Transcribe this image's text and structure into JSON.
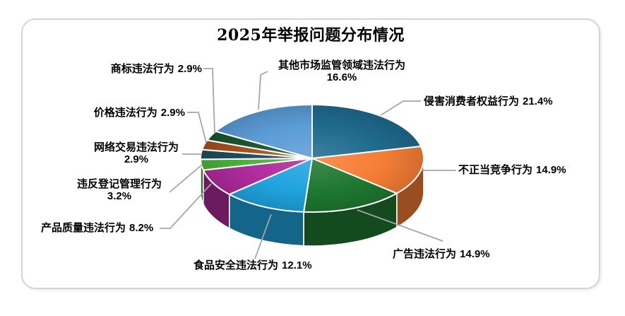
{
  "window": {
    "background_color": "#FFFFFF",
    "frame_border_color": "#D4D4D4"
  },
  "chart": {
    "title": "2025年举报问题分布情况"
  },
  "chart_data": {
    "type": "pie",
    "title": "2025年举报问题分布情况",
    "effect": "3d",
    "unit": "%",
    "start_angle_deg": 0,
    "direction": "clockwise",
    "legend_position": "none",
    "labels_style": "callout-with-leader-lines",
    "leader_line_color": "#A6A6A6",
    "slices": [
      {
        "label": "侵害消费者权益行为",
        "value": 21.4,
        "color": "#1F6A8D"
      },
      {
        "label": "不正当竞争行为",
        "value": 14.9,
        "color": "#F57E35"
      },
      {
        "label": "广告违法行为",
        "value": 14.9,
        "color": "#1E7830"
      },
      {
        "label": "食品安全违法行为",
        "value": 12.1,
        "color": "#1FA3DE"
      },
      {
        "label": "产品质量违法行为",
        "value": 8.2,
        "color": "#AF2B9D"
      },
      {
        "label": "违反登记管理行为",
        "value": 3.2,
        "color": "#4CB23B"
      },
      {
        "label": "网络交易违法行为",
        "value": 2.9,
        "color": "#1F4D5E"
      },
      {
        "label": "价格违法行为",
        "value": 2.9,
        "color": "#A6511E"
      },
      {
        "label": "商标违法行为",
        "value": 2.9,
        "color": "#1C5530"
      },
      {
        "label": "其他市场监管领域违法行为",
        "value": 16.6,
        "color": "#5B9BD5"
      }
    ]
  }
}
